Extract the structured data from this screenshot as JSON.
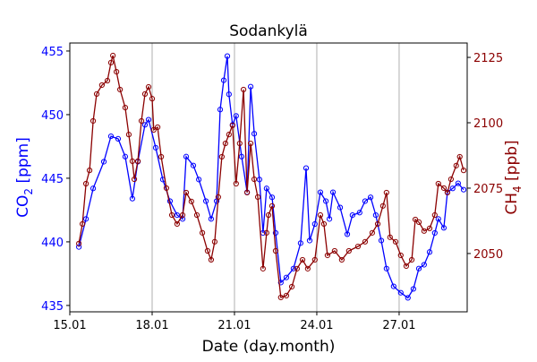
{
  "chart_data": {
    "type": "line",
    "title": "Sodankylä",
    "xlabel": "Date (day.month)",
    "ylabel_left": {
      "base": "CO",
      "sub": "2",
      "unit": " [ppm]"
    },
    "ylabel_right": {
      "base": "CH",
      "sub": "4",
      "unit": " [ppb]"
    },
    "xlim": [
      15,
      29.48
    ],
    "ylim_left": [
      434.5,
      455.63
    ],
    "ylim_right": [
      2027.7,
      2130.5
    ],
    "x_ticks": [
      {
        "value": 15,
        "label": "15.01"
      },
      {
        "value": 18,
        "label": "18.01"
      },
      {
        "value": 21,
        "label": "21.01"
      },
      {
        "value": 24,
        "label": "24.01"
      },
      {
        "value": 27,
        "label": "27.01"
      }
    ],
    "y_ticks_left": [
      435,
      440,
      445,
      450,
      455
    ],
    "y_ticks_right": [
      2050,
      2075,
      2100,
      2125
    ],
    "grid": "vertical",
    "colors": {
      "co2": "#0000ff",
      "ch4": "#8b0000",
      "grid": "#b0b0b0"
    },
    "series": [
      {
        "name": "CO2",
        "axis": "left",
        "color": "#0000ff",
        "x": [
          15.33,
          15.59,
          15.85,
          16.24,
          16.5,
          16.76,
          17.02,
          17.28,
          17.48,
          17.74,
          17.87,
          18.13,
          18.39,
          18.65,
          18.91,
          19.11,
          19.24,
          19.5,
          19.7,
          19.96,
          20.15,
          20.35,
          20.48,
          20.61,
          20.74,
          20.8,
          20.93,
          21.06,
          21.26,
          21.46,
          21.59,
          21.72,
          21.91,
          22.04,
          22.17,
          22.37,
          22.5,
          22.69,
          22.89,
          23.15,
          23.41,
          23.61,
          23.74,
          23.93,
          24.13,
          24.33,
          24.46,
          24.59,
          24.85,
          25.11,
          25.3,
          25.56,
          25.76,
          25.96,
          26.15,
          26.35,
          26.54,
          26.8,
          27.06,
          27.32,
          27.52,
          27.72,
          27.91,
          28.11,
          28.3,
          28.43,
          28.63,
          28.76,
          28.95,
          29.15,
          29.35
        ],
        "y": [
          439.6,
          441.8,
          444.2,
          446.3,
          448.3,
          448.1,
          446.7,
          443.4,
          446.3,
          449.2,
          449.6,
          447.4,
          444.9,
          443.2,
          442.1,
          441.8,
          446.7,
          446.0,
          444.9,
          443.2,
          441.8,
          443.2,
          450.4,
          452.7,
          454.6,
          451.6,
          449.2,
          449.9,
          446.7,
          443.9,
          452.2,
          448.5,
          444.9,
          440.7,
          444.2,
          443.5,
          440.7,
          436.8,
          437.2,
          437.9,
          439.9,
          445.8,
          440.1,
          441.4,
          443.9,
          443.2,
          441.8,
          443.9,
          442.7,
          440.6,
          442.1,
          442.3,
          443.2,
          443.5,
          442.1,
          440.1,
          437.9,
          436.5,
          436.0,
          435.6,
          436.3,
          437.9,
          438.2,
          439.2,
          440.7,
          441.8,
          441.1,
          443.9,
          444.2,
          444.6,
          444.1
        ]
      },
      {
        "name": "CH4",
        "axis": "right",
        "color": "#8b0000",
        "x": [
          15.33,
          15.46,
          15.59,
          15.72,
          15.85,
          15.98,
          16.17,
          16.37,
          16.5,
          16.57,
          16.7,
          16.83,
          17.02,
          17.15,
          17.28,
          17.35,
          17.48,
          17.61,
          17.74,
          17.87,
          18.0,
          18.06,
          18.2,
          18.33,
          18.52,
          18.72,
          18.91,
          19.11,
          19.24,
          19.43,
          19.63,
          19.83,
          20.02,
          20.15,
          20.28,
          20.41,
          20.54,
          20.67,
          20.8,
          20.93,
          21.06,
          21.19,
          21.33,
          21.46,
          21.59,
          21.72,
          21.85,
          22.04,
          22.17,
          22.24,
          22.37,
          22.5,
          22.69,
          22.89,
          23.09,
          23.28,
          23.48,
          23.67,
          23.93,
          24.13,
          24.26,
          24.39,
          24.65,
          24.91,
          25.17,
          25.5,
          25.76,
          26.02,
          26.22,
          26.41,
          26.54,
          26.67,
          26.87,
          27.06,
          27.26,
          27.46,
          27.59,
          27.72,
          27.91,
          28.11,
          28.3,
          28.43,
          28.63,
          28.76,
          28.89,
          29.08,
          29.21,
          29.35
        ],
        "y": [
          2053.8,
          2061.3,
          2076.7,
          2081.8,
          2100.7,
          2111.0,
          2114.4,
          2116.1,
          2123.0,
          2125.7,
          2119.5,
          2112.7,
          2105.8,
          2095.5,
          2085.3,
          2078.4,
          2085.3,
          2100.7,
          2111.0,
          2113.7,
          2109.2,
          2097.3,
          2098.3,
          2087.0,
          2075.0,
          2064.7,
          2061.3,
          2064.7,
          2073.3,
          2069.9,
          2064.7,
          2057.9,
          2051.0,
          2047.6,
          2054.5,
          2071.6,
          2087.0,
          2092.1,
          2095.5,
          2099.0,
          2076.7,
          2092.1,
          2112.7,
          2073.3,
          2092.1,
          2078.4,
          2071.6,
          2044.2,
          2057.9,
          2064.7,
          2068.2,
          2051.0,
          2033.2,
          2033.9,
          2037.3,
          2044.2,
          2047.6,
          2044.2,
          2047.6,
          2064.7,
          2061.3,
          2049.3,
          2051.0,
          2047.6,
          2051.0,
          2052.7,
          2054.5,
          2057.9,
          2061.3,
          2068.2,
          2073.3,
          2056.2,
          2054.5,
          2049.3,
          2045.2,
          2047.6,
          2063.0,
          2062.0,
          2058.6,
          2059.6,
          2064.7,
          2076.7,
          2075.0,
          2073.3,
          2078.4,
          2083.6,
          2087.0,
          2081.8
        ]
      }
    ]
  }
}
